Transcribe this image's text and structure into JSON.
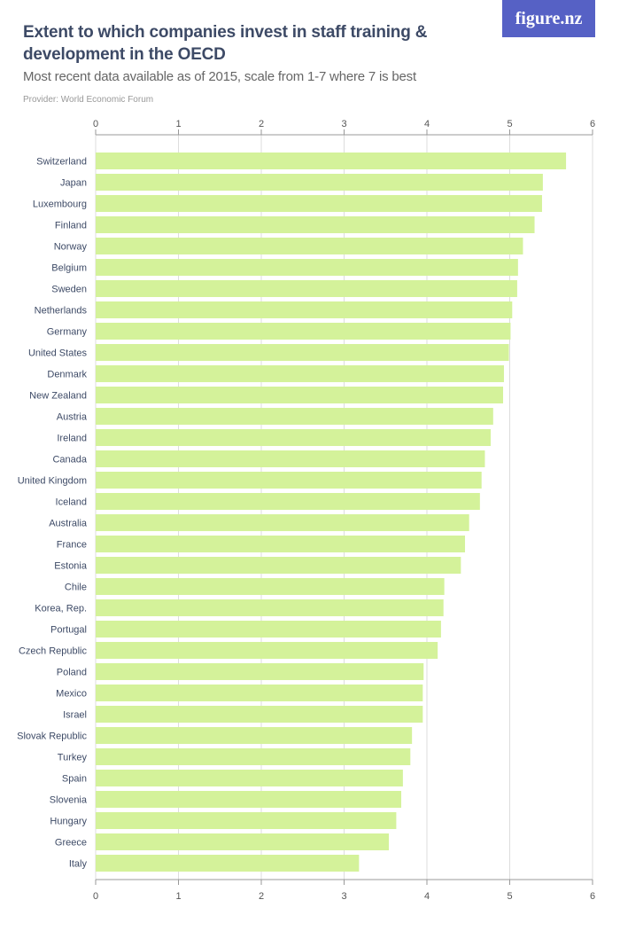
{
  "header": {
    "title": "Extent to which companies invest in staff training & development in the OECD",
    "subtitle": "Most recent data available as of 2015, scale from 1-7 where 7 is best",
    "provider": "Provider: World Economic Forum",
    "logo_text": "figure.nz"
  },
  "colors": {
    "bar": "#d4f29a",
    "logo_bg": "#5661c5",
    "title": "#3d4a66",
    "grid": "#dddddd"
  },
  "chart_data": {
    "type": "bar",
    "orientation": "horizontal",
    "title": "Extent to which companies invest in staff training & development in the OECD",
    "subtitle": "Most recent data available as of 2015, scale from 1-7 where 7 is best",
    "xlim": [
      0,
      6
    ],
    "xticks": [
      "0",
      "1",
      "2",
      "3",
      "4",
      "5",
      "6"
    ],
    "grid": true,
    "categories": [
      "Switzerland",
      "Japan",
      "Luxembourg",
      "Finland",
      "Norway",
      "Belgium",
      "Sweden",
      "Netherlands",
      "Germany",
      "United States",
      "Denmark",
      "New Zealand",
      "Austria",
      "Ireland",
      "Canada",
      "United Kingdom",
      "Iceland",
      "Australia",
      "France",
      "Estonia",
      "Chile",
      "Korea, Rep.",
      "Portugal",
      "Czech Republic",
      "Poland",
      "Mexico",
      "Israel",
      "Slovak Republic",
      "Turkey",
      "Spain",
      "Slovenia",
      "Hungary",
      "Greece",
      "Italy"
    ],
    "values": [
      5.68,
      5.4,
      5.39,
      5.3,
      5.16,
      5.1,
      5.09,
      5.03,
      5.01,
      4.99,
      4.93,
      4.92,
      4.8,
      4.77,
      4.7,
      4.66,
      4.64,
      4.51,
      4.46,
      4.41,
      4.21,
      4.2,
      4.17,
      4.13,
      3.96,
      3.95,
      3.95,
      3.82,
      3.8,
      3.71,
      3.69,
      3.63,
      3.54,
      3.18
    ]
  }
}
